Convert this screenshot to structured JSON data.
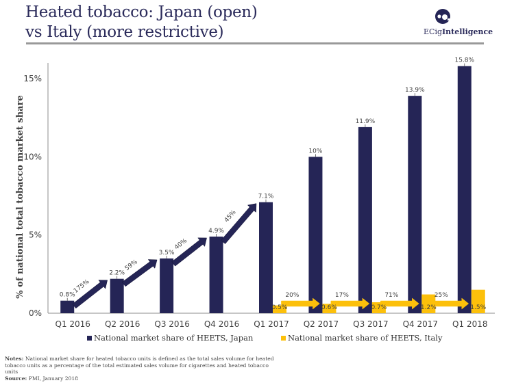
{
  "header": {
    "title_line1": "Heated tobacco: Japan (open)",
    "title_line2": "vs Italy (more restrictive)",
    "logo_prefix": "ECig",
    "logo_suffix": "Intelligence",
    "logo_icon": "ecig-intelligence-logo-icon"
  },
  "chart_data": {
    "type": "bar",
    "title": "Heated tobacco: Japan (open) vs Italy (more restrictive)",
    "xlabel": "",
    "ylabel": "% of national total tobacco market share",
    "ylim": [
      0,
      16
    ],
    "yticks": [
      0,
      5,
      10,
      15
    ],
    "ytick_labels": [
      "0%",
      "5%",
      "10%",
      "15%"
    ],
    "grid": false,
    "legend_position": "bottom",
    "categories": [
      "Q1 2016",
      "Q2 2016",
      "Q3 2016",
      "Q4 2016",
      "Q1 2017",
      "Q2 2017",
      "Q3 2017",
      "Q4 2017",
      "Q1 2018"
    ],
    "series": [
      {
        "name": "National market share of HEETS, Japan",
        "color": "#252556",
        "values": [
          0.8,
          2.2,
          3.5,
          4.9,
          7.1,
          10,
          11.9,
          13.9,
          15.8
        ],
        "labels": [
          "0.8%",
          "2.2%",
          "3.5%",
          "4.9%",
          "7.1%",
          "10%",
          "11.9%",
          "13.9%",
          "15.8%"
        ]
      },
      {
        "name": "National market share of HEETS, Italy",
        "color": "#fcc00b",
        "values": [
          null,
          null,
          null,
          null,
          0.5,
          0.6,
          0.7,
          1.2,
          1.5
        ],
        "labels": [
          "",
          "",
          "",
          "",
          "0.5%",
          "0.6%",
          "0.7%",
          "1.2%",
          "1.5%"
        ]
      }
    ],
    "annotations": {
      "japan_growth": [
        {
          "from": "Q1 2016",
          "to": "Q2 2016",
          "label": "175%"
        },
        {
          "from": "Q2 2016",
          "to": "Q3 2016",
          "label": "59%"
        },
        {
          "from": "Q3 2016",
          "to": "Q4 2016",
          "label": "40%"
        },
        {
          "from": "Q4 2016",
          "to": "Q1 2017",
          "label": "45%"
        }
      ],
      "italy_growth": [
        {
          "from": "Q1 2017",
          "to": "Q2 2017",
          "label": "20%"
        },
        {
          "from": "Q2 2017",
          "to": "Q3 2017",
          "label": "17%"
        },
        {
          "from": "Q3 2017",
          "to": "Q4 2017",
          "label": "71%"
        },
        {
          "from": "Q4 2017",
          "to": "Q1 2018",
          "label": "25%"
        }
      ]
    }
  },
  "legend": {
    "japan": "National market share of HEETS, Japan",
    "italy": "National market share of HEETS, Italy",
    "japan_color": "#252556",
    "italy_color": "#fcc00b"
  },
  "notes": {
    "notes_label": "Notes:",
    "notes_text": "National market share for heated tobacco units is defined as the total sales volume for heated tobacco units as a percentage of the total estimated sales volume for cigarettes and heated tobacco units",
    "source_label": "Source:",
    "source_text": "PMI, January 2018"
  }
}
